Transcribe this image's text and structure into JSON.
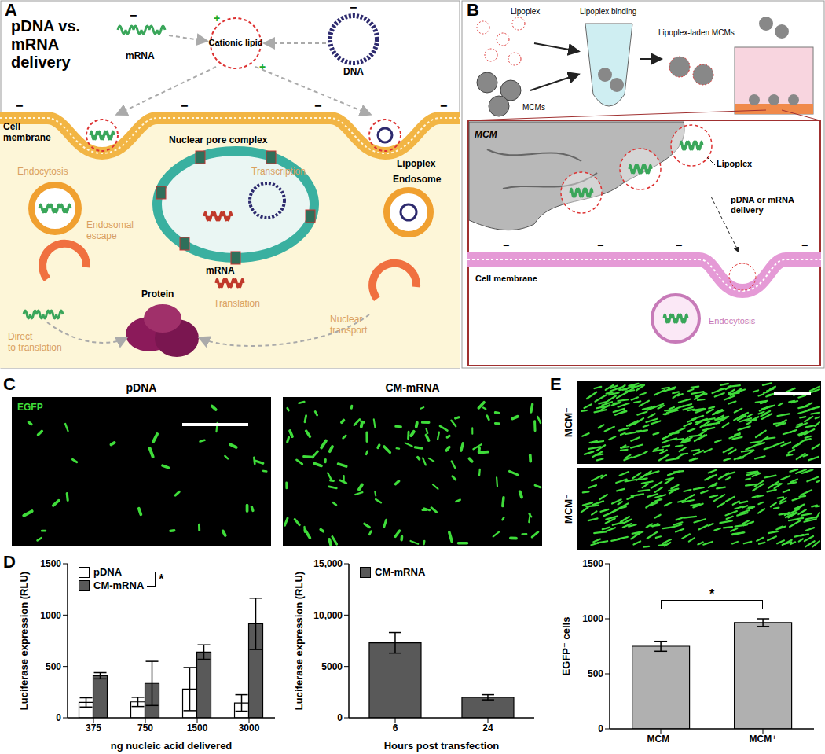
{
  "panels": {
    "A": {
      "letter": "A",
      "title": [
        "pDNA vs.",
        "mRNA",
        "delivery"
      ],
      "mRNA": "mRNA",
      "lipid": "Cationic lipid",
      "dna": "DNA",
      "membrane": [
        "Cell",
        "membrane"
      ],
      "endocytosis": "Endocytosis",
      "escape": [
        "Endosomal",
        "escape"
      ],
      "pore": "Nuclear pore complex",
      "transcription": "Transcription",
      "lipoplex": "Lipoplex",
      "endosome": "Endosome",
      "mRNA2": "mRNA",
      "translation": "Translation",
      "transport": [
        "Nuclear",
        "transport"
      ],
      "direct": [
        "Direct",
        "to translation"
      ],
      "protein": "Protein",
      "positive": "+",
      "negative": "−"
    },
    "B": {
      "letter": "B",
      "lipoplex": "Lipoplex",
      "binding": "Lipoplex binding",
      "laden": "Lipoplex-laden MCMs",
      "mcms": "MCMs",
      "mcm": "MCM",
      "lipoplex2": "Lipoplex",
      "delivery": [
        "pDNA or mRNA",
        "delivery"
      ],
      "membrane": "Cell membrane",
      "endocytosis": "Endocytosis"
    },
    "C": {
      "letter": "C",
      "images": [
        "pDNA",
        "CM-mRNA"
      ],
      "stain": "EGFP"
    },
    "D": {
      "letter": "D"
    },
    "E": {
      "letter": "E",
      "images": [
        "MCM⁺",
        "MCM⁻"
      ]
    }
  },
  "chart_data": [
    {
      "type": "bar",
      "categories": [
        "375",
        "750",
        "1500",
        "3000"
      ],
      "series": [
        {
          "name": "pDNA",
          "color": "#ffffff",
          "values": [
            150,
            155,
            280,
            145
          ],
          "errors": [
            45,
            45,
            210,
            80
          ]
        },
        {
          "name": "CM-mRNA",
          "color": "#595959",
          "values": [
            410,
            335,
            640,
            915
          ],
          "errors": [
            30,
            215,
            70,
            250
          ]
        }
      ],
      "x_label": "ng nucleic acid delivered",
      "y_label": "Luciferase expression (RLU)",
      "ylim": [
        0,
        1500
      ],
      "yticks": [
        0,
        500,
        1000,
        1500
      ],
      "legend": "top-left",
      "annotations": [
        "*"
      ]
    },
    {
      "type": "bar",
      "categories": [
        "6",
        "24"
      ],
      "series": [
        {
          "name": "CM-mRNA",
          "color": "#595959",
          "values": [
            7300,
            2000
          ],
          "errors": [
            1000,
            250
          ]
        }
      ],
      "x_label": "Hours post transfection",
      "y_label": "Luciferase expression (RLU)",
      "ylim": [
        0,
        15000
      ],
      "yticks": [
        0,
        5000,
        {
          "value": 10000,
          "label": "10,000"
        },
        {
          "value": 15000,
          "label": "15,000"
        }
      ],
      "legend": "top-left"
    },
    {
      "type": "bar",
      "categories": [
        "MCM⁻",
        "MCM⁺"
      ],
      "values": [
        750,
        965
      ],
      "errors": [
        45,
        35
      ],
      "color": "#b0b0b0",
      "y_label": "EGFP⁺ cells",
      "ylim": [
        0,
        1500
      ],
      "yticks": [
        0,
        500,
        1000,
        1500
      ],
      "annotations": [
        "*"
      ]
    }
  ]
}
